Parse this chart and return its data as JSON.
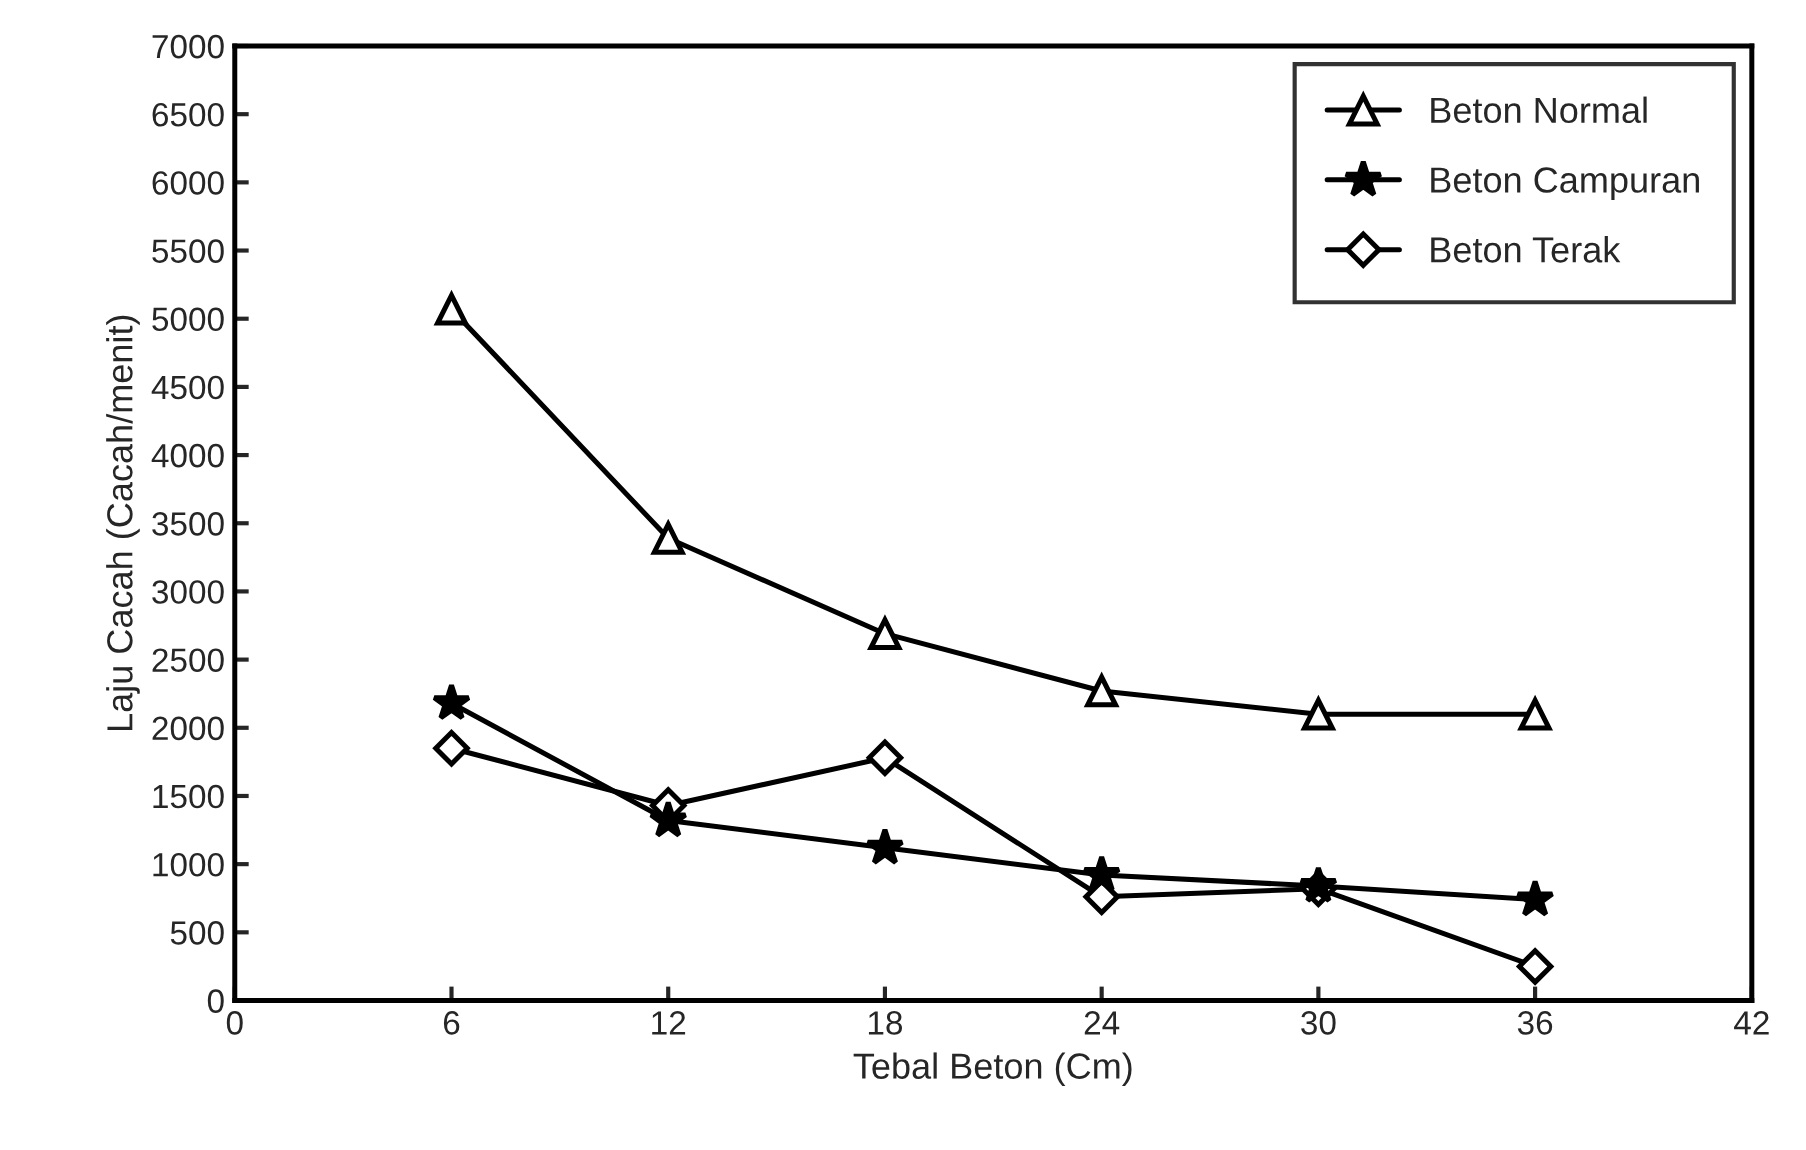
{
  "chart_data": {
    "type": "line",
    "xlabel": "Tebal Beton (Cm)",
    "ylabel": "Laju Cacah (Cacah/menit)",
    "x": [
      6,
      12,
      18,
      24,
      30,
      36
    ],
    "xlim": [
      0,
      42
    ],
    "xticks": [
      0,
      6,
      12,
      18,
      24,
      30,
      36,
      42
    ],
    "ylim": [
      0,
      7000
    ],
    "yticks": [
      0,
      500,
      1000,
      1500,
      2000,
      2500,
      3000,
      3500,
      4000,
      4500,
      5000,
      5500,
      6000,
      6500,
      7000
    ],
    "grid": false,
    "legend": "top right",
    "series": [
      {
        "name": "Beton Normal",
        "color": "#000000",
        "marker": "triangle",
        "values": [
          5070,
          3390,
          2690,
          2270,
          2100,
          2100
        ]
      },
      {
        "name": "Beton Campuran",
        "color": "#000000",
        "marker": "star",
        "values": [
          2180,
          1320,
          1120,
          920,
          840,
          740
        ]
      },
      {
        "name": "Beton Terak",
        "color": "#000000",
        "marker": "diamond",
        "values": [
          1850,
          1430,
          1780,
          760,
          820,
          250
        ]
      }
    ]
  }
}
